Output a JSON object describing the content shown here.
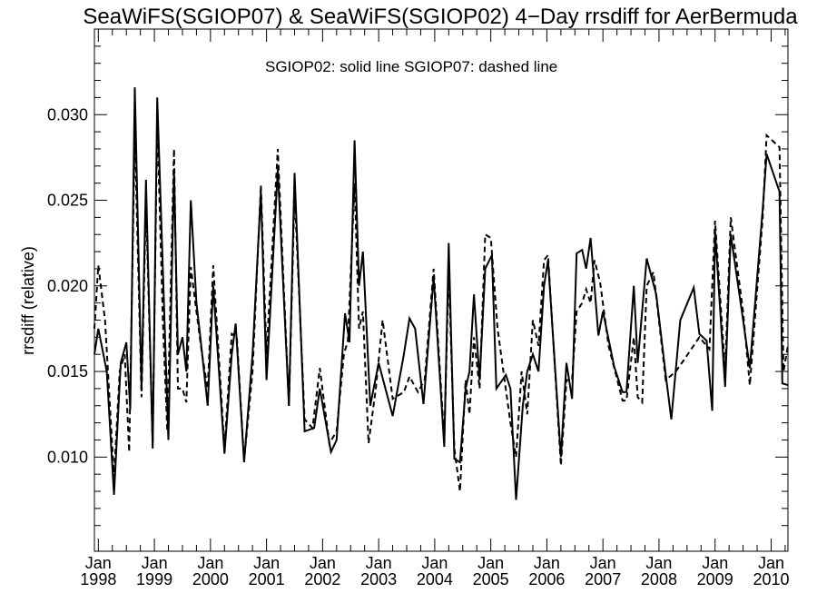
{
  "chart_data": {
    "type": "line",
    "title": "SeaWiFS(SGIOP07) & SeaWiFS(SGIOP02) 4−Day rrsdiff for AerBermuda",
    "xlabel": "",
    "ylabel": "rrsdiff (relative)",
    "annotation": "SGIOP02: solid line   SGIOP07: dashed line",
    "xlim": [
      1997.93,
      2010.3
    ],
    "ylim": [
      0.0045,
      0.035
    ],
    "grid": false,
    "x_ticks": [
      {
        "x": 1998,
        "month": "Jan",
        "year": "1998"
      },
      {
        "x": 1999,
        "month": "Jan",
        "year": "1999"
      },
      {
        "x": 2000,
        "month": "Jan",
        "year": "2000"
      },
      {
        "x": 2001,
        "month": "Jan",
        "year": "2001"
      },
      {
        "x": 2002,
        "month": "Jan",
        "year": "2002"
      },
      {
        "x": 2003,
        "month": "Jan",
        "year": "2003"
      },
      {
        "x": 2004,
        "month": "Jan",
        "year": "2004"
      },
      {
        "x": 2005,
        "month": "Jan",
        "year": "2005"
      },
      {
        "x": 2006,
        "month": "Jan",
        "year": "2006"
      },
      {
        "x": 2007,
        "month": "Jan",
        "year": "2007"
      },
      {
        "x": 2008,
        "month": "Jan",
        "year": "2008"
      },
      {
        "x": 2009,
        "month": "Jan",
        "year": "2009"
      },
      {
        "x": 2010,
        "month": "Jan",
        "year": "2010"
      }
    ],
    "y_ticks": [
      {
        "value": 0.01,
        "label": "0.010"
      },
      {
        "value": 0.015,
        "label": "0.015"
      },
      {
        "value": 0.02,
        "label": "0.020"
      },
      {
        "value": 0.025,
        "label": "0.025"
      },
      {
        "value": 0.03,
        "label": "0.030"
      }
    ],
    "series": [
      {
        "name": "SGIOP02",
        "style": "solid",
        "color": "#000000",
        "points": [
          [
            1997.93,
            0.016
          ],
          [
            1998.0,
            0.0175
          ],
          [
            1998.15,
            0.015
          ],
          [
            1998.28,
            0.0078
          ],
          [
            1998.4,
            0.0155
          ],
          [
            1998.5,
            0.0167
          ],
          [
            1998.57,
            0.0128
          ],
          [
            1998.65,
            0.0316
          ],
          [
            1998.77,
            0.014
          ],
          [
            1998.85,
            0.0262
          ],
          [
            1998.97,
            0.0105
          ],
          [
            1999.05,
            0.031
          ],
          [
            1999.17,
            0.019
          ],
          [
            1999.25,
            0.011
          ],
          [
            1999.35,
            0.0268
          ],
          [
            1999.42,
            0.016
          ],
          [
            1999.5,
            0.017
          ],
          [
            1999.57,
            0.015
          ],
          [
            1999.65,
            0.025
          ],
          [
            1999.75,
            0.019
          ],
          [
            1999.82,
            0.017
          ],
          [
            1999.95,
            0.013
          ],
          [
            2000.05,
            0.02
          ],
          [
            2000.25,
            0.0102
          ],
          [
            2000.38,
            0.016
          ],
          [
            2000.45,
            0.0178
          ],
          [
            2000.6,
            0.0097
          ],
          [
            2000.75,
            0.016
          ],
          [
            2000.9,
            0.0255
          ],
          [
            2001.0,
            0.0145
          ],
          [
            2001.2,
            0.0268
          ],
          [
            2001.4,
            0.013
          ],
          [
            2001.5,
            0.0266
          ],
          [
            2001.68,
            0.0115
          ],
          [
            2001.85,
            0.0117
          ],
          [
            2001.95,
            0.014
          ],
          [
            2002.15,
            0.0103
          ],
          [
            2002.25,
            0.011
          ],
          [
            2002.4,
            0.0184
          ],
          [
            2002.48,
            0.0167
          ],
          [
            2002.57,
            0.0285
          ],
          [
            2002.65,
            0.02
          ],
          [
            2002.72,
            0.022
          ],
          [
            2002.85,
            0.013
          ],
          [
            2003.0,
            0.0155
          ],
          [
            2003.25,
            0.0124
          ],
          [
            2003.45,
            0.016
          ],
          [
            2003.55,
            0.0181
          ],
          [
            2003.65,
            0.0175
          ],
          [
            2003.8,
            0.0131
          ],
          [
            2003.98,
            0.0205
          ],
          [
            2004.17,
            0.0106
          ],
          [
            2004.25,
            0.0225
          ],
          [
            2004.35,
            0.0099
          ],
          [
            2004.45,
            0.0097
          ],
          [
            2004.55,
            0.014
          ],
          [
            2004.62,
            0.015
          ],
          [
            2004.7,
            0.0195
          ],
          [
            2004.8,
            0.0145
          ],
          [
            2004.9,
            0.021
          ],
          [
            2005.02,
            0.0218
          ],
          [
            2005.1,
            0.014
          ],
          [
            2005.27,
            0.0148
          ],
          [
            2005.35,
            0.014
          ],
          [
            2005.45,
            0.0075
          ],
          [
            2005.57,
            0.013
          ],
          [
            2005.65,
            0.015
          ],
          [
            2005.75,
            0.016
          ],
          [
            2005.85,
            0.015
          ],
          [
            2005.95,
            0.02
          ],
          [
            2006.02,
            0.0215
          ],
          [
            2006.25,
            0.01
          ],
          [
            2006.35,
            0.0155
          ],
          [
            2006.45,
            0.0134
          ],
          [
            2006.53,
            0.0219
          ],
          [
            2006.63,
            0.0221
          ],
          [
            2006.7,
            0.021
          ],
          [
            2006.78,
            0.0228
          ],
          [
            2006.92,
            0.0171
          ],
          [
            2007.0,
            0.0185
          ],
          [
            2007.2,
            0.0153
          ],
          [
            2007.35,
            0.0138
          ],
          [
            2007.42,
            0.0138
          ],
          [
            2007.55,
            0.02
          ],
          [
            2007.62,
            0.0155
          ],
          [
            2007.78,
            0.0216
          ],
          [
            2007.95,
            0.0195
          ],
          [
            2008.12,
            0.0148
          ],
          [
            2008.22,
            0.0122
          ],
          [
            2008.38,
            0.018
          ],
          [
            2008.62,
            0.0199
          ],
          [
            2008.72,
            0.0172
          ],
          [
            2008.85,
            0.0168
          ],
          [
            2008.95,
            0.0127
          ],
          [
            2009.0,
            0.0232
          ],
          [
            2009.18,
            0.0141
          ],
          [
            2009.28,
            0.023
          ],
          [
            2009.5,
            0.018
          ],
          [
            2009.62,
            0.0152
          ],
          [
            2009.85,
            0.0245
          ],
          [
            2009.92,
            0.0277
          ],
          [
            2010.15,
            0.0255
          ],
          [
            2010.2,
            0.0143
          ],
          [
            2010.3,
            0.0142
          ]
        ]
      },
      {
        "name": "SGIOP07",
        "style": "dashed",
        "color": "#000000",
        "points": [
          [
            1997.93,
            0.0175
          ],
          [
            1998.0,
            0.0212
          ],
          [
            1998.12,
            0.018
          ],
          [
            1998.28,
            0.0088
          ],
          [
            1998.38,
            0.015
          ],
          [
            1998.47,
            0.016
          ],
          [
            1998.55,
            0.0103
          ],
          [
            1998.65,
            0.029
          ],
          [
            1998.77,
            0.0135
          ],
          [
            1998.85,
            0.025
          ],
          [
            1998.97,
            0.0108
          ],
          [
            1999.05,
            0.0297
          ],
          [
            1999.15,
            0.018
          ],
          [
            1999.23,
            0.0115
          ],
          [
            1999.35,
            0.028
          ],
          [
            1999.42,
            0.014
          ],
          [
            1999.5,
            0.014
          ],
          [
            1999.57,
            0.0132
          ],
          [
            1999.65,
            0.0211
          ],
          [
            1999.75,
            0.0185
          ],
          [
            1999.85,
            0.016
          ],
          [
            1999.95,
            0.014
          ],
          [
            2000.05,
            0.0212
          ],
          [
            2000.25,
            0.0105
          ],
          [
            2000.38,
            0.0172
          ],
          [
            2000.47,
            0.017
          ],
          [
            2000.6,
            0.0098
          ],
          [
            2000.75,
            0.015
          ],
          [
            2000.9,
            0.0259
          ],
          [
            2001.0,
            0.016
          ],
          [
            2001.2,
            0.028
          ],
          [
            2001.4,
            0.013
          ],
          [
            2001.5,
            0.0255
          ],
          [
            2001.68,
            0.0122
          ],
          [
            2001.82,
            0.0117
          ],
          [
            2001.95,
            0.0152
          ],
          [
            2002.12,
            0.0108
          ],
          [
            2002.25,
            0.0115
          ],
          [
            2002.38,
            0.016
          ],
          [
            2002.45,
            0.0168
          ],
          [
            2002.57,
            0.026
          ],
          [
            2002.65,
            0.0175
          ],
          [
            2002.72,
            0.0185
          ],
          [
            2002.82,
            0.0108
          ],
          [
            2002.95,
            0.014
          ],
          [
            2003.07,
            0.018
          ],
          [
            2003.25,
            0.0134
          ],
          [
            2003.45,
            0.0138
          ],
          [
            2003.55,
            0.0147
          ],
          [
            2003.7,
            0.0138
          ],
          [
            2003.82,
            0.0145
          ],
          [
            2003.98,
            0.021
          ],
          [
            2004.17,
            0.011
          ],
          [
            2004.25,
            0.021
          ],
          [
            2004.35,
            0.0105
          ],
          [
            2004.45,
            0.008
          ],
          [
            2004.55,
            0.0145
          ],
          [
            2004.62,
            0.0125
          ],
          [
            2004.7,
            0.017
          ],
          [
            2004.8,
            0.014
          ],
          [
            2004.9,
            0.023
          ],
          [
            2005.0,
            0.0228
          ],
          [
            2005.12,
            0.0175
          ],
          [
            2005.35,
            0.012
          ],
          [
            2005.45,
            0.01
          ],
          [
            2005.55,
            0.015
          ],
          [
            2005.65,
            0.0125
          ],
          [
            2005.75,
            0.018
          ],
          [
            2005.85,
            0.0165
          ],
          [
            2005.95,
            0.0215
          ],
          [
            2006.02,
            0.0218
          ],
          [
            2006.25,
            0.0095
          ],
          [
            2006.35,
            0.0145
          ],
          [
            2006.45,
            0.0145
          ],
          [
            2006.53,
            0.0185
          ],
          [
            2006.63,
            0.019
          ],
          [
            2006.7,
            0.0198
          ],
          [
            2006.78,
            0.019
          ],
          [
            2006.85,
            0.0215
          ],
          [
            2006.95,
            0.0202
          ],
          [
            2007.1,
            0.0165
          ],
          [
            2007.35,
            0.0133
          ],
          [
            2007.42,
            0.0133
          ],
          [
            2007.55,
            0.017
          ],
          [
            2007.62,
            0.0135
          ],
          [
            2007.7,
            0.0132
          ],
          [
            2007.78,
            0.02
          ],
          [
            2007.9,
            0.0208
          ],
          [
            2008.12,
            0.0145
          ],
          [
            2008.3,
            0.015
          ],
          [
            2008.45,
            0.0157
          ],
          [
            2008.72,
            0.017
          ],
          [
            2008.9,
            0.0163
          ],
          [
            2009.0,
            0.0238
          ],
          [
            2009.18,
            0.015
          ],
          [
            2009.28,
            0.024
          ],
          [
            2009.5,
            0.0185
          ],
          [
            2009.62,
            0.0142
          ],
          [
            2009.85,
            0.024
          ],
          [
            2009.92,
            0.0288
          ],
          [
            2010.15,
            0.0281
          ],
          [
            2010.22,
            0.015
          ],
          [
            2010.3,
            0.0165
          ]
        ]
      }
    ]
  }
}
